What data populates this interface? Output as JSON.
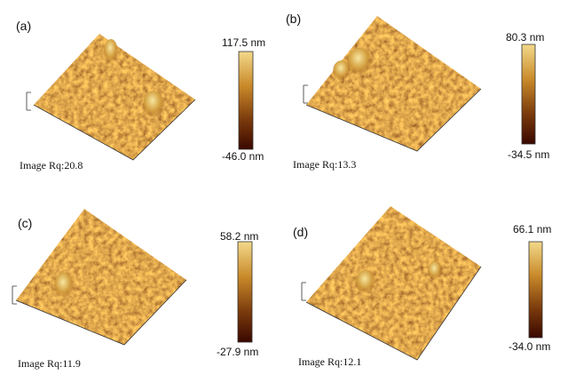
{
  "panels": [
    {
      "label": "(a)",
      "max_label": "117.5 nm",
      "min_label": "-46.0 nm",
      "rq": "Image Rq:20.8"
    },
    {
      "label": "(b)",
      "max_label": "80.3 nm",
      "min_label": "-34.5 nm",
      "rq": "Image Rq:13.3"
    },
    {
      "label": "(c)",
      "max_label": "58.2 nm",
      "min_label": "-27.9 nm",
      "rq": "Image Rq:11.9"
    },
    {
      "label": "(d)",
      "max_label": "66.1 nm",
      "min_label": "-34.0 nm",
      "rq": "Image Rq:12.1"
    }
  ]
}
